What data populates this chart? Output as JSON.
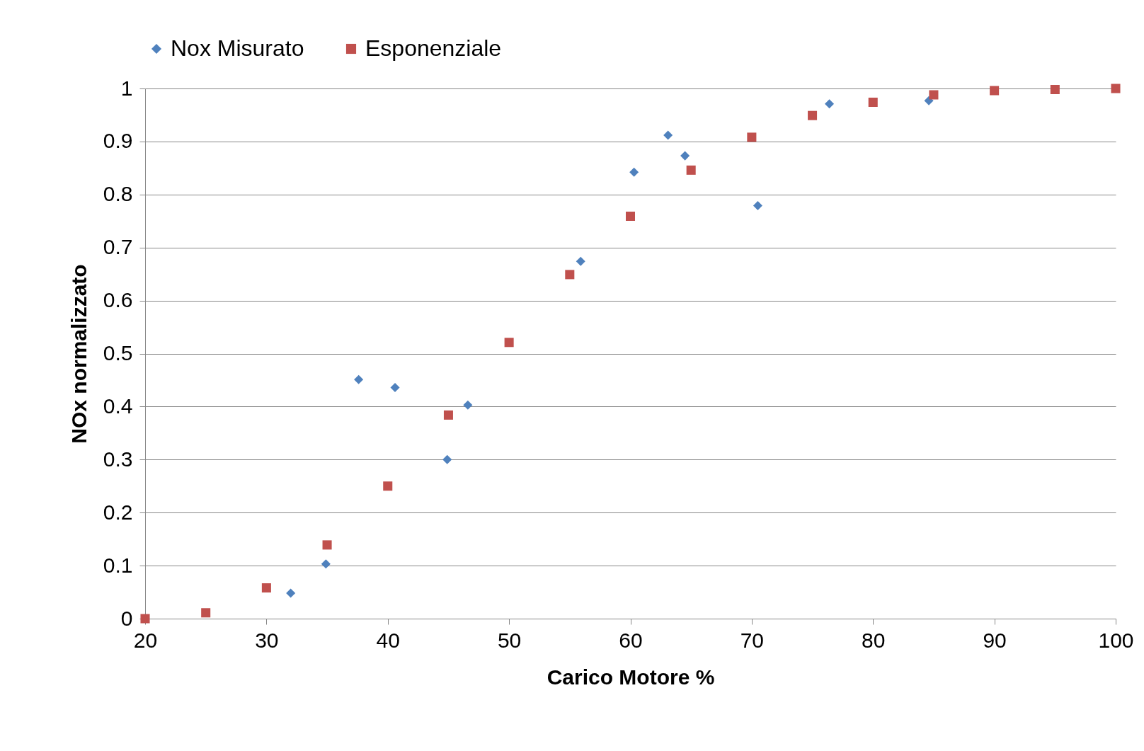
{
  "chart_data": {
    "type": "scatter",
    "xlabel": "Carico Motore %",
    "ylabel": "NOx normalizzato",
    "xlim": [
      20,
      100
    ],
    "xticks": [
      20,
      30,
      40,
      50,
      60,
      70,
      80,
      90,
      100
    ],
    "ylim": [
      0,
      1
    ],
    "yticks": [
      0,
      0.1,
      0.2,
      0.3,
      0.4,
      0.5,
      0.6,
      0.7,
      0.8,
      0.9,
      1
    ],
    "grid": "y",
    "legend": "top",
    "series": [
      {
        "name": "Nox Misurato",
        "color": "#4f81bd",
        "marker": "diamond",
        "x": [
          32.0,
          34.9,
          37.6,
          40.6,
          44.9,
          46.6,
          55.9,
          60.3,
          63.1,
          64.5,
          70.5,
          76.4,
          84.6
        ],
        "values": [
          0.048,
          0.103,
          0.451,
          0.436,
          0.3,
          0.403,
          0.674,
          0.842,
          0.912,
          0.873,
          0.779,
          0.971,
          0.977
        ]
      },
      {
        "name": "Esponenziale",
        "color": "#c0504d",
        "marker": "square",
        "x": [
          20,
          25,
          30,
          35,
          40,
          45,
          50,
          55,
          60,
          65,
          70,
          75,
          80,
          85,
          90,
          95,
          100
        ],
        "values": [
          0,
          0.011,
          0.058,
          0.139,
          0.25,
          0.384,
          0.521,
          0.649,
          0.759,
          0.846,
          0.908,
          0.949,
          0.974,
          0.988,
          0.996,
          0.998,
          1.0
        ]
      }
    ]
  }
}
